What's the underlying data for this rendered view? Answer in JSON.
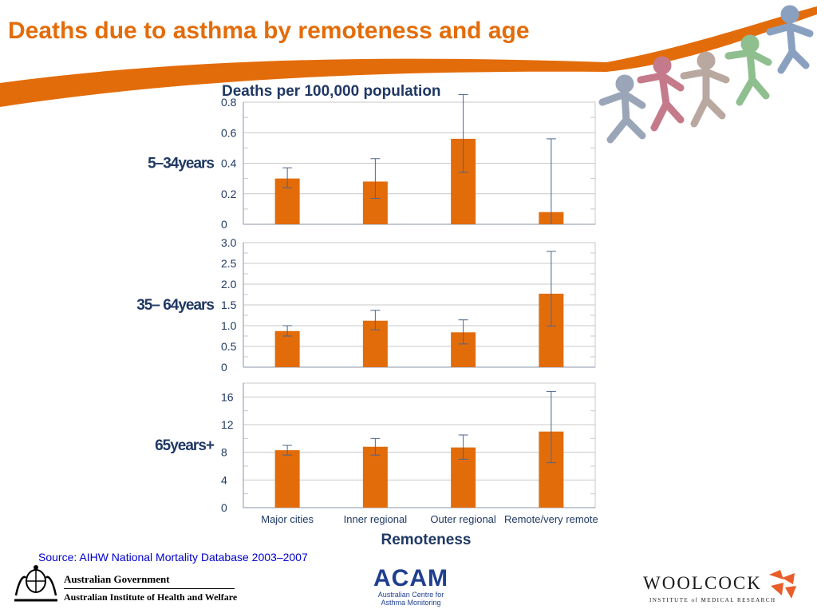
{
  "slide": {
    "title": "Deaths due to asthma by remoteness and age",
    "source": "Source: AIHW National Mortality Database 2003–2007"
  },
  "colors": {
    "title": "#e36c0a",
    "bar": "#e36c0a",
    "error_bar": "#4a6491",
    "axis_text": "#1f3864",
    "grid": "#c8c8c8",
    "source_text": "#0000cc"
  },
  "logos": {
    "gov_line1": "Australian Government",
    "gov_line2": "Australian Institute of Health and Welfare",
    "acam_name": "ACAM",
    "acam_sub1": "Australian Centre for",
    "acam_sub2": "Asthma Monitoring",
    "woolcock_name": "WOOLCOCK",
    "woolcock_sub": "INSTITUTE of MEDICAL RESEARCH"
  },
  "chart_data": {
    "type": "bar",
    "title": "Deaths per 100,000 population",
    "xlabel": "Remoteness",
    "categories": [
      "Major cities",
      "Inner regional",
      "Outer regional",
      "Remote/very remote"
    ],
    "panels": [
      {
        "label": "5–34years",
        "ylim": [
          0,
          0.8
        ],
        "ticks": [
          "0",
          "0.2",
          "0.4",
          "0.6",
          "0.8"
        ],
        "tick_values": [
          0,
          0.2,
          0.4,
          0.6,
          0.8
        ],
        "values": [
          0.3,
          0.28,
          0.56,
          0.08
        ],
        "ci_low": [
          0.24,
          0.17,
          0.34,
          0.0
        ],
        "ci_high": [
          0.37,
          0.43,
          0.85,
          0.56
        ]
      },
      {
        "label": "35– 64years",
        "ylim": [
          0,
          3.0
        ],
        "ticks": [
          "0",
          "0.5",
          "1.0",
          "1.5",
          "2.0",
          "2.5",
          "3.0"
        ],
        "tick_values": [
          0,
          0.5,
          1.0,
          1.5,
          2.0,
          2.5,
          3.0
        ],
        "values": [
          0.87,
          1.12,
          0.84,
          1.77
        ],
        "ci_low": [
          0.75,
          0.9,
          0.56,
          0.99
        ],
        "ci_high": [
          1.0,
          1.37,
          1.14,
          2.79
        ]
      },
      {
        "label": "65years+",
        "ylim": [
          0,
          18
        ],
        "ticks": [
          "0",
          "4",
          "8",
          "12",
          "16"
        ],
        "tick_values": [
          0,
          4,
          8,
          12,
          16
        ],
        "values": [
          8.3,
          8.8,
          8.7,
          11.0
        ],
        "ci_low": [
          7.6,
          7.6,
          7.0,
          6.5
        ],
        "ci_high": [
          9.0,
          10.0,
          10.5,
          16.8
        ]
      }
    ]
  }
}
